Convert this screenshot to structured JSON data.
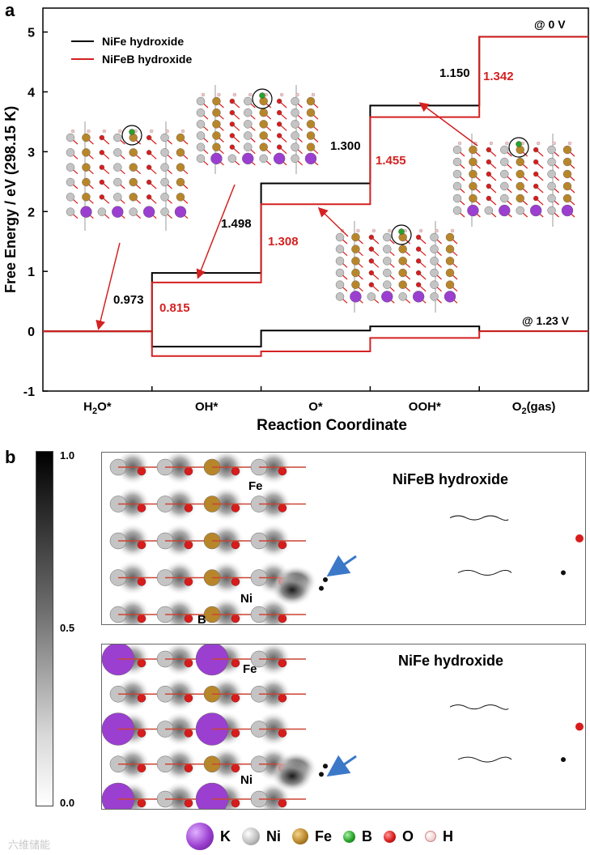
{
  "panel_a": {
    "letter": "a",
    "potential_top": "@ 0 V",
    "potential_bottom": "@ 1.23 V",
    "legend": [
      {
        "label": "NiFe hydroxide",
        "color": "#000000"
      },
      {
        "label": "NiFeB hydroxide",
        "color": "#d42121"
      }
    ],
    "steps_nife": [
      "0.973",
      "1.498",
      "1.300",
      "1.150"
    ],
    "steps_nifeb": [
      "0.815",
      "1.308",
      "1.455",
      "1.342"
    ]
  },
  "chart_data": {
    "type": "line",
    "title": "",
    "xlabel": "Reaction Coordinate",
    "ylabel": "Free Energy / eV (298.15 K)",
    "categories": [
      "H2O*",
      "OH*",
      "O*",
      "OOH*",
      "O2(gas)"
    ],
    "ylim": [
      -1,
      5.4
    ],
    "yticks": [
      -1,
      0,
      1,
      2,
      3,
      4,
      5
    ],
    "series": [
      {
        "name": "NiFe hydroxide @ 0 V",
        "color": "#000000",
        "values": [
          0,
          0.973,
          2.471,
          3.771,
          4.921
        ]
      },
      {
        "name": "NiFeB hydroxide @ 0 V",
        "color": "#d42121",
        "values": [
          0,
          0.815,
          2.123,
          3.578,
          4.92
        ]
      },
      {
        "name": "NiFe hydroxide @ 1.23 V",
        "color": "#000000",
        "values": [
          0,
          -0.257,
          0.011,
          0.081,
          0.001
        ]
      },
      {
        "name": "NiFeB hydroxide @ 1.23 V",
        "color": "#d42121",
        "values": [
          0,
          -0.415,
          -0.337,
          -0.112,
          0
        ]
      }
    ]
  },
  "panel_b": {
    "letter": "b",
    "colorbar": {
      "max": "1.0",
      "mid": "0.5",
      "min": "0.0"
    },
    "top_title": "NiFeB hydroxide",
    "bottom_title": "NiFe hydroxide",
    "atom_labels": {
      "fe": "Fe",
      "ni": "Ni",
      "b": "B"
    },
    "arrow_color": "#3c78c8"
  },
  "atom_legend": [
    {
      "symbol": "K",
      "color": "#9b3fd0"
    },
    {
      "symbol": "Ni",
      "color": "#bfbfbf"
    },
    {
      "symbol": "Fe",
      "color": "#b8862a"
    },
    {
      "symbol": "B",
      "color": "#27a327"
    },
    {
      "symbol": "O",
      "color": "#d81c1c"
    },
    {
      "symbol": "H",
      "color": "#f2d3d3"
    }
  ],
  "watermark": "六维储能"
}
